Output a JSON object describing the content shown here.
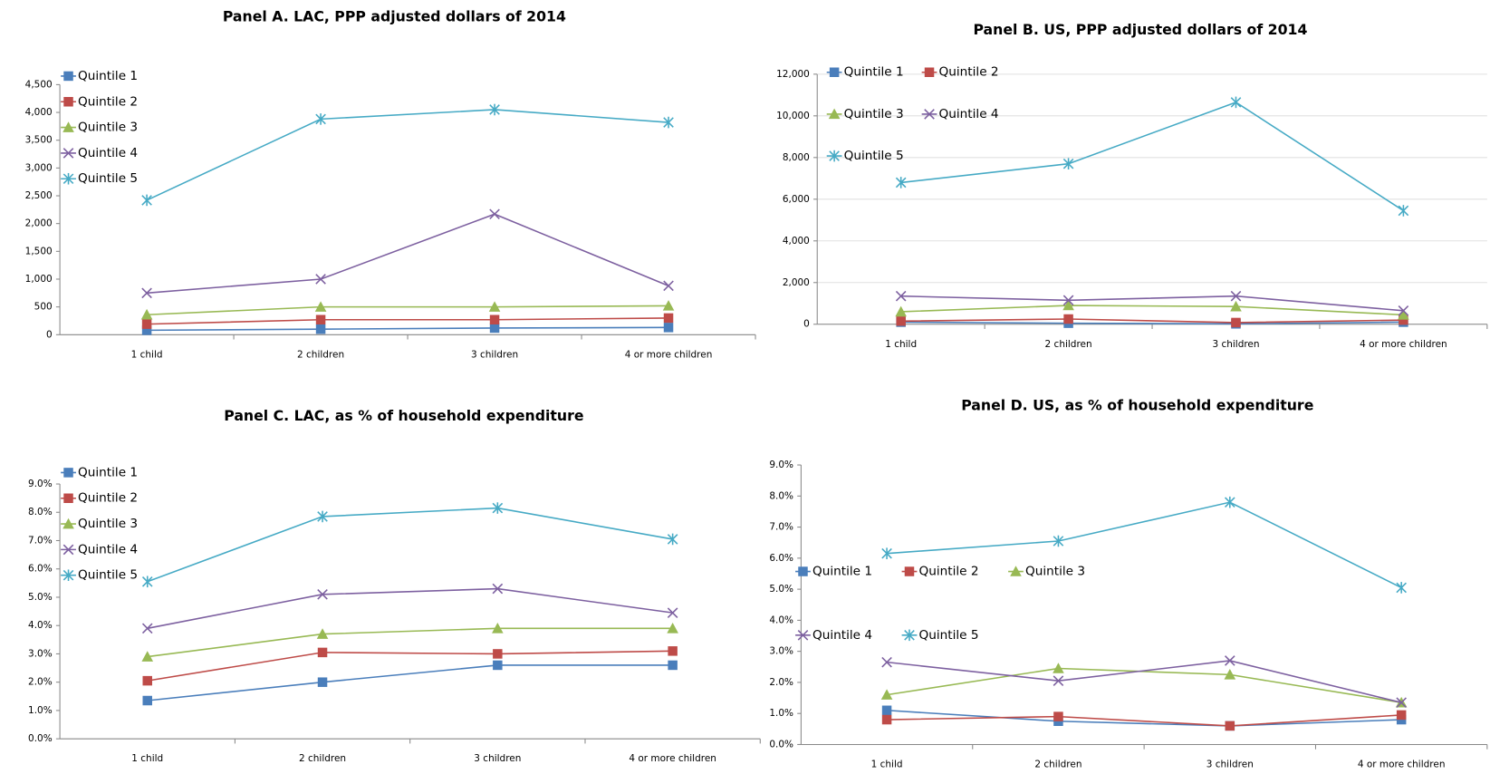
{
  "chart_data": [
    {
      "type": "line",
      "title": "Panel A.  LAC, PPP adjusted dollars of 2014",
      "categories": [
        "1 child",
        "2 children",
        "3 children",
        "4 or more children"
      ],
      "ylim": [
        0,
        4500
      ],
      "yticks": [
        0,
        500,
        {
          "value": 1000,
          "label": "1,000"
        },
        {
          "value": 1500,
          "label": "1,500"
        },
        {
          "value": 2000,
          "label": "2,000"
        },
        {
          "value": 2500,
          "label": "2,500"
        },
        {
          "value": 3000,
          "label": "3,000"
        },
        {
          "value": 3500,
          "label": "3,500"
        },
        {
          "value": 4000,
          "label": "4,000"
        },
        {
          "value": 4500,
          "label": "4,500"
        }
      ],
      "grid": false,
      "series": [
        {
          "name": "Quintile 1",
          "color": "#4a7ebb",
          "values": [
            80,
            100,
            120,
            130
          ]
        },
        {
          "name": "Quintile 2",
          "color": "#be4b48",
          "values": [
            190,
            270,
            270,
            300
          ]
        },
        {
          "name": "Quintile 3",
          "color": "#98b954",
          "values": [
            360,
            500,
            500,
            520
          ]
        },
        {
          "name": "Quintile 4",
          "color": "#7d60a0",
          "values": [
            750,
            1000,
            2170,
            880
          ]
        },
        {
          "name": "Quintile 5",
          "color": "#46aac5",
          "values": [
            2420,
            3880,
            4050,
            3820
          ]
        }
      ]
    },
    {
      "type": "line",
      "title": "Panel B. US, PPP adjusted dollars of 2014",
      "categories": [
        "1 child",
        "2 children",
        "3 children",
        "4 or more children"
      ],
      "ylim": [
        0,
        12000
      ],
      "yticks": [
        0,
        {
          "value": 2000,
          "label": "2,000"
        },
        {
          "value": 4000,
          "label": "4,000"
        },
        {
          "value": 6000,
          "label": "6,000"
        },
        {
          "value": 8000,
          "label": "8,000"
        },
        {
          "value": 10000,
          "label": "10,000"
        },
        {
          "value": 12000,
          "label": "12,000"
        }
      ],
      "grid": true,
      "series": [
        {
          "name": "Quintile 1",
          "color": "#4a7ebb",
          "values": [
            100,
            50,
            20,
            100
          ]
        },
        {
          "name": "Quintile 2",
          "color": "#be4b48",
          "values": [
            150,
            250,
            80,
            200
          ]
        },
        {
          "name": "Quintile 3",
          "color": "#98b954",
          "values": [
            600,
            900,
            850,
            450
          ]
        },
        {
          "name": "Quintile 4",
          "color": "#7d60a0",
          "values": [
            1350,
            1150,
            1350,
            650
          ]
        },
        {
          "name": "Quintile 5",
          "color": "#46aac5",
          "values": [
            6800,
            7700,
            10650,
            5450
          ]
        }
      ]
    },
    {
      "type": "line",
      "title": "Panel C. LAC, as % of household expenditure",
      "categories": [
        "1 child",
        "2 children",
        "3 children",
        "4 or more children"
      ],
      "ylim": [
        0,
        9
      ],
      "yticks": [
        {
          "value": 0,
          "label": "0.0%"
        },
        {
          "value": 1,
          "label": "1.0%"
        },
        {
          "value": 2,
          "label": "2.0%"
        },
        {
          "value": 3,
          "label": "3.0%"
        },
        {
          "value": 4,
          "label": "4.0%"
        },
        {
          "value": 5,
          "label": "5.0%"
        },
        {
          "value": 6,
          "label": "6.0%"
        },
        {
          "value": 7,
          "label": "7.0%"
        },
        {
          "value": 8,
          "label": "8.0%"
        },
        {
          "value": 9,
          "label": "9.0%"
        }
      ],
      "grid": false,
      "series": [
        {
          "name": "Quintile 1",
          "color": "#4a7ebb",
          "values": [
            1.35,
            2.0,
            2.6,
            2.6
          ]
        },
        {
          "name": "Quintile 2",
          "color": "#be4b48",
          "values": [
            2.05,
            3.05,
            3.0,
            3.1
          ]
        },
        {
          "name": "Quintile 3",
          "color": "#98b954",
          "values": [
            2.9,
            3.7,
            3.9,
            3.9
          ]
        },
        {
          "name": "Quintile 4",
          "color": "#7d60a0",
          "values": [
            3.9,
            5.1,
            5.3,
            4.45
          ]
        },
        {
          "name": "Quintile 5",
          "color": "#46aac5",
          "values": [
            5.55,
            7.85,
            8.15,
            7.05
          ]
        }
      ]
    },
    {
      "type": "line",
      "title": "Panel D. US, as % of household expenditure",
      "categories": [
        "1 child",
        "2 children",
        "3 children",
        "4 or more children"
      ],
      "ylim": [
        0,
        9
      ],
      "yticks": [
        {
          "value": 0,
          "label": "0.0%"
        },
        {
          "value": 1,
          "label": "1.0%"
        },
        {
          "value": 2,
          "label": "2.0%"
        },
        {
          "value": 3,
          "label": "3.0%"
        },
        {
          "value": 4,
          "label": "4.0%"
        },
        {
          "value": 5,
          "label": "5.0%"
        },
        {
          "value": 6,
          "label": "6.0%"
        },
        {
          "value": 7,
          "label": "7.0%"
        },
        {
          "value": 8,
          "label": "8.0%"
        },
        {
          "value": 9,
          "label": "9.0%"
        }
      ],
      "grid": false,
      "series": [
        {
          "name": "Quintile 1",
          "color": "#4a7ebb",
          "values": [
            1.1,
            0.75,
            0.6,
            0.8
          ]
        },
        {
          "name": "Quintile 2",
          "color": "#be4b48",
          "values": [
            0.8,
            0.9,
            0.6,
            0.95
          ]
        },
        {
          "name": "Quintile 3",
          "color": "#98b954",
          "values": [
            1.6,
            2.45,
            2.25,
            1.35
          ]
        },
        {
          "name": "Quintile 4",
          "color": "#7d60a0",
          "values": [
            2.65,
            2.05,
            2.7,
            1.35
          ]
        },
        {
          "name": "Quintile 5",
          "color": "#46aac5",
          "values": [
            6.15,
            6.55,
            7.8,
            5.05
          ]
        }
      ]
    }
  ]
}
